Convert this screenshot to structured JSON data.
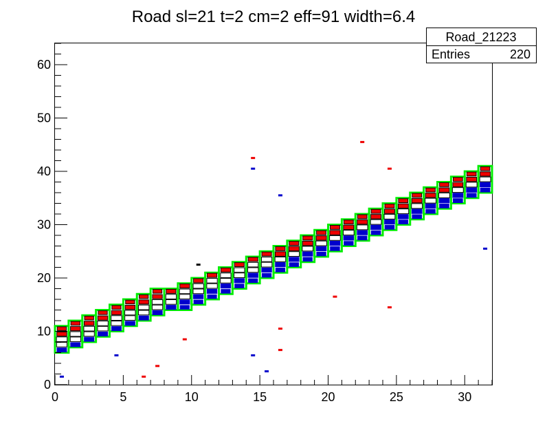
{
  "chart_data": {
    "type": "heatmap",
    "title": "Road sl=21 t=2 cm=2 eff=91 width=6.4",
    "xlabel": "",
    "ylabel": "",
    "xlim": [
      0,
      32
    ],
    "ylim": [
      0,
      64
    ],
    "x_ticks": [
      0,
      5,
      10,
      15,
      20,
      25,
      30
    ],
    "y_ticks": [
      0,
      10,
      20,
      30,
      40,
      50,
      60
    ],
    "grid": false,
    "stats_box": {
      "name": "Road_21223",
      "entries_label": "Entries",
      "entries_value": "220"
    },
    "colors": {
      "road": "#00ee00",
      "high": "#ee0000",
      "low": "#0000cc",
      "mid": "#000000"
    },
    "road_center": {
      "intercept": 8.2,
      "slope": 0.975
    },
    "road_half_height": 2,
    "columns": 32,
    "outliers": [
      {
        "x": 0.5,
        "y": 1.5,
        "level": "low"
      },
      {
        "x": 4.5,
        "y": 5.5,
        "level": "low"
      },
      {
        "x": 6.5,
        "y": 1.5,
        "level": "high"
      },
      {
        "x": 7.5,
        "y": 3.5,
        "level": "high"
      },
      {
        "x": 9.5,
        "y": 8.5,
        "level": "high"
      },
      {
        "x": 10.5,
        "y": 22.5,
        "level": "mid"
      },
      {
        "x": 14.5,
        "y": 42.5,
        "level": "high"
      },
      {
        "x": 14.5,
        "y": 40.5,
        "level": "low"
      },
      {
        "x": 14.5,
        "y": 5.5,
        "level": "low"
      },
      {
        "x": 15.5,
        "y": 2.5,
        "level": "low"
      },
      {
        "x": 16.5,
        "y": 35.5,
        "level": "low"
      },
      {
        "x": 16.5,
        "y": 10.5,
        "level": "high"
      },
      {
        "x": 16.5,
        "y": 6.5,
        "level": "high"
      },
      {
        "x": 20.5,
        "y": 16.5,
        "level": "high"
      },
      {
        "x": 22.5,
        "y": 45.5,
        "level": "high"
      },
      {
        "x": 24.5,
        "y": 40.5,
        "level": "high"
      },
      {
        "x": 24.5,
        "y": 14.5,
        "level": "high"
      },
      {
        "x": 31.5,
        "y": 25.5,
        "level": "low"
      }
    ]
  }
}
